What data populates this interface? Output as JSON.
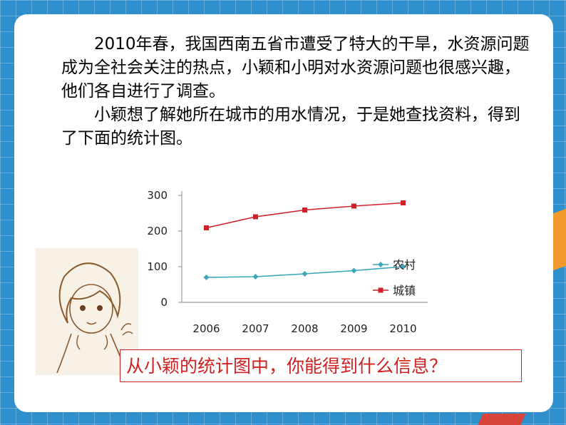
{
  "paragraphs": {
    "p1": "2010年春，我国西南五省市遭受了特大的干旱，水资源问题成为全社会关注的热点，小颖和小明对水资源问题也很感兴趣，他们各自进行了调查。",
    "p2": "小颖想了解她所在城市的用水情况，于是她查找资料，得到了下面的统计图。"
  },
  "question": "从小颖的统计图中，你能得到什么信息？",
  "colors": {
    "rural": "#3aa6b9",
    "urban": "#d0202a",
    "question": "#d02020"
  },
  "chart_data": {
    "type": "line",
    "x": [
      "2006",
      "2007",
      "2008",
      "2009",
      "2010"
    ],
    "series": [
      {
        "name": "农村",
        "values": [
          70,
          72,
          80,
          89,
          100
        ],
        "marker": "diamond"
      },
      {
        "name": "城镇",
        "values": [
          209,
          240,
          259,
          270,
          279
        ],
        "marker": "square"
      }
    ],
    "yticks": [
      0,
      100,
      200,
      300
    ],
    "ylim": [
      0,
      300
    ],
    "grid": false,
    "legend": "right"
  }
}
